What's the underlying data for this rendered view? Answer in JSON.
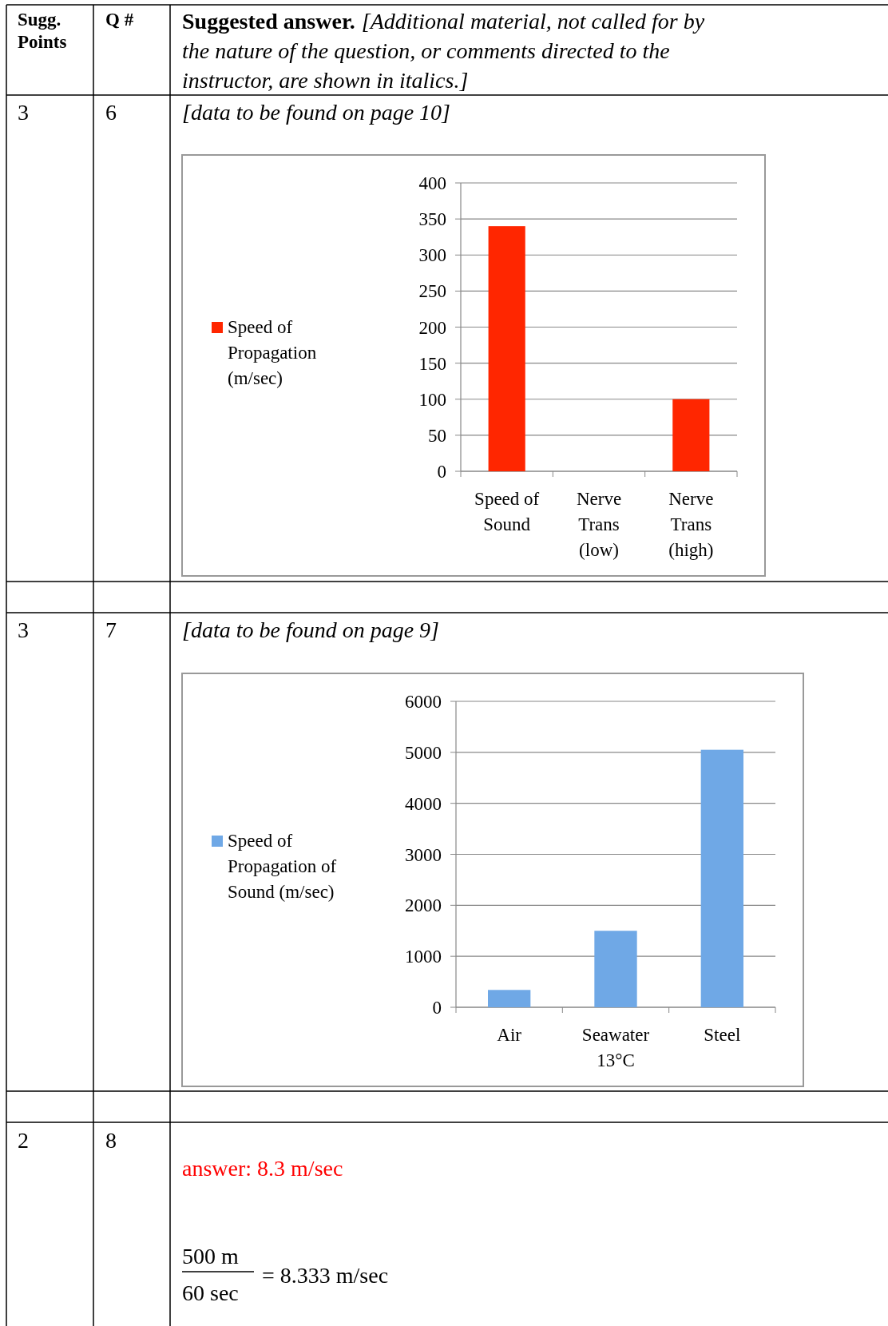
{
  "chart_data": [
    {
      "type": "other",
      "annotations": [
        "Sugg.",
        "Points",
        "Q #",
        "Suggested answer.",
        "[Additional material, not called for by the nature of the question, or comments directed to the instructor, are shown in italics.]",
        "3",
        "6",
        "[data to be found on page 10]",
        "3",
        "7",
        "[data to be found on page 9]",
        "2",
        "8",
        "answer: 8.3 m/sec",
        "500 m",
        "60 sec",
        "= 8.333 m/sec"
      ]
    },
    {
      "type": "bar",
      "categories": [
        "Speed of Sound",
        "Nerve Trans (low)",
        "Nerve Trans (high)"
      ],
      "series": [
        {
          "name": "Speed of Propagation (m/sec)",
          "color": "#ff2600",
          "values": [
            340,
            null,
            100
          ]
        }
      ],
      "ylim": [
        0,
        400
      ],
      "yticks": [
        0,
        50,
        100,
        150,
        200,
        250,
        300,
        350,
        400
      ],
      "grid": "y",
      "legend": "left"
    },
    {
      "type": "bar",
      "categories": [
        "Air",
        "Seawater 13°C",
        "Steel"
      ],
      "series": [
        {
          "name": "Speed of Propagation of Sound (m/sec)",
          "color": "#6fa8e6",
          "values": [
            340,
            1500,
            5050
          ]
        }
      ],
      "ylim": [
        0,
        6000
      ],
      "yticks": [
        0,
        1000,
        2000,
        3000,
        4000,
        5000,
        6000
      ],
      "grid": "y",
      "legend": "left"
    }
  ]
}
